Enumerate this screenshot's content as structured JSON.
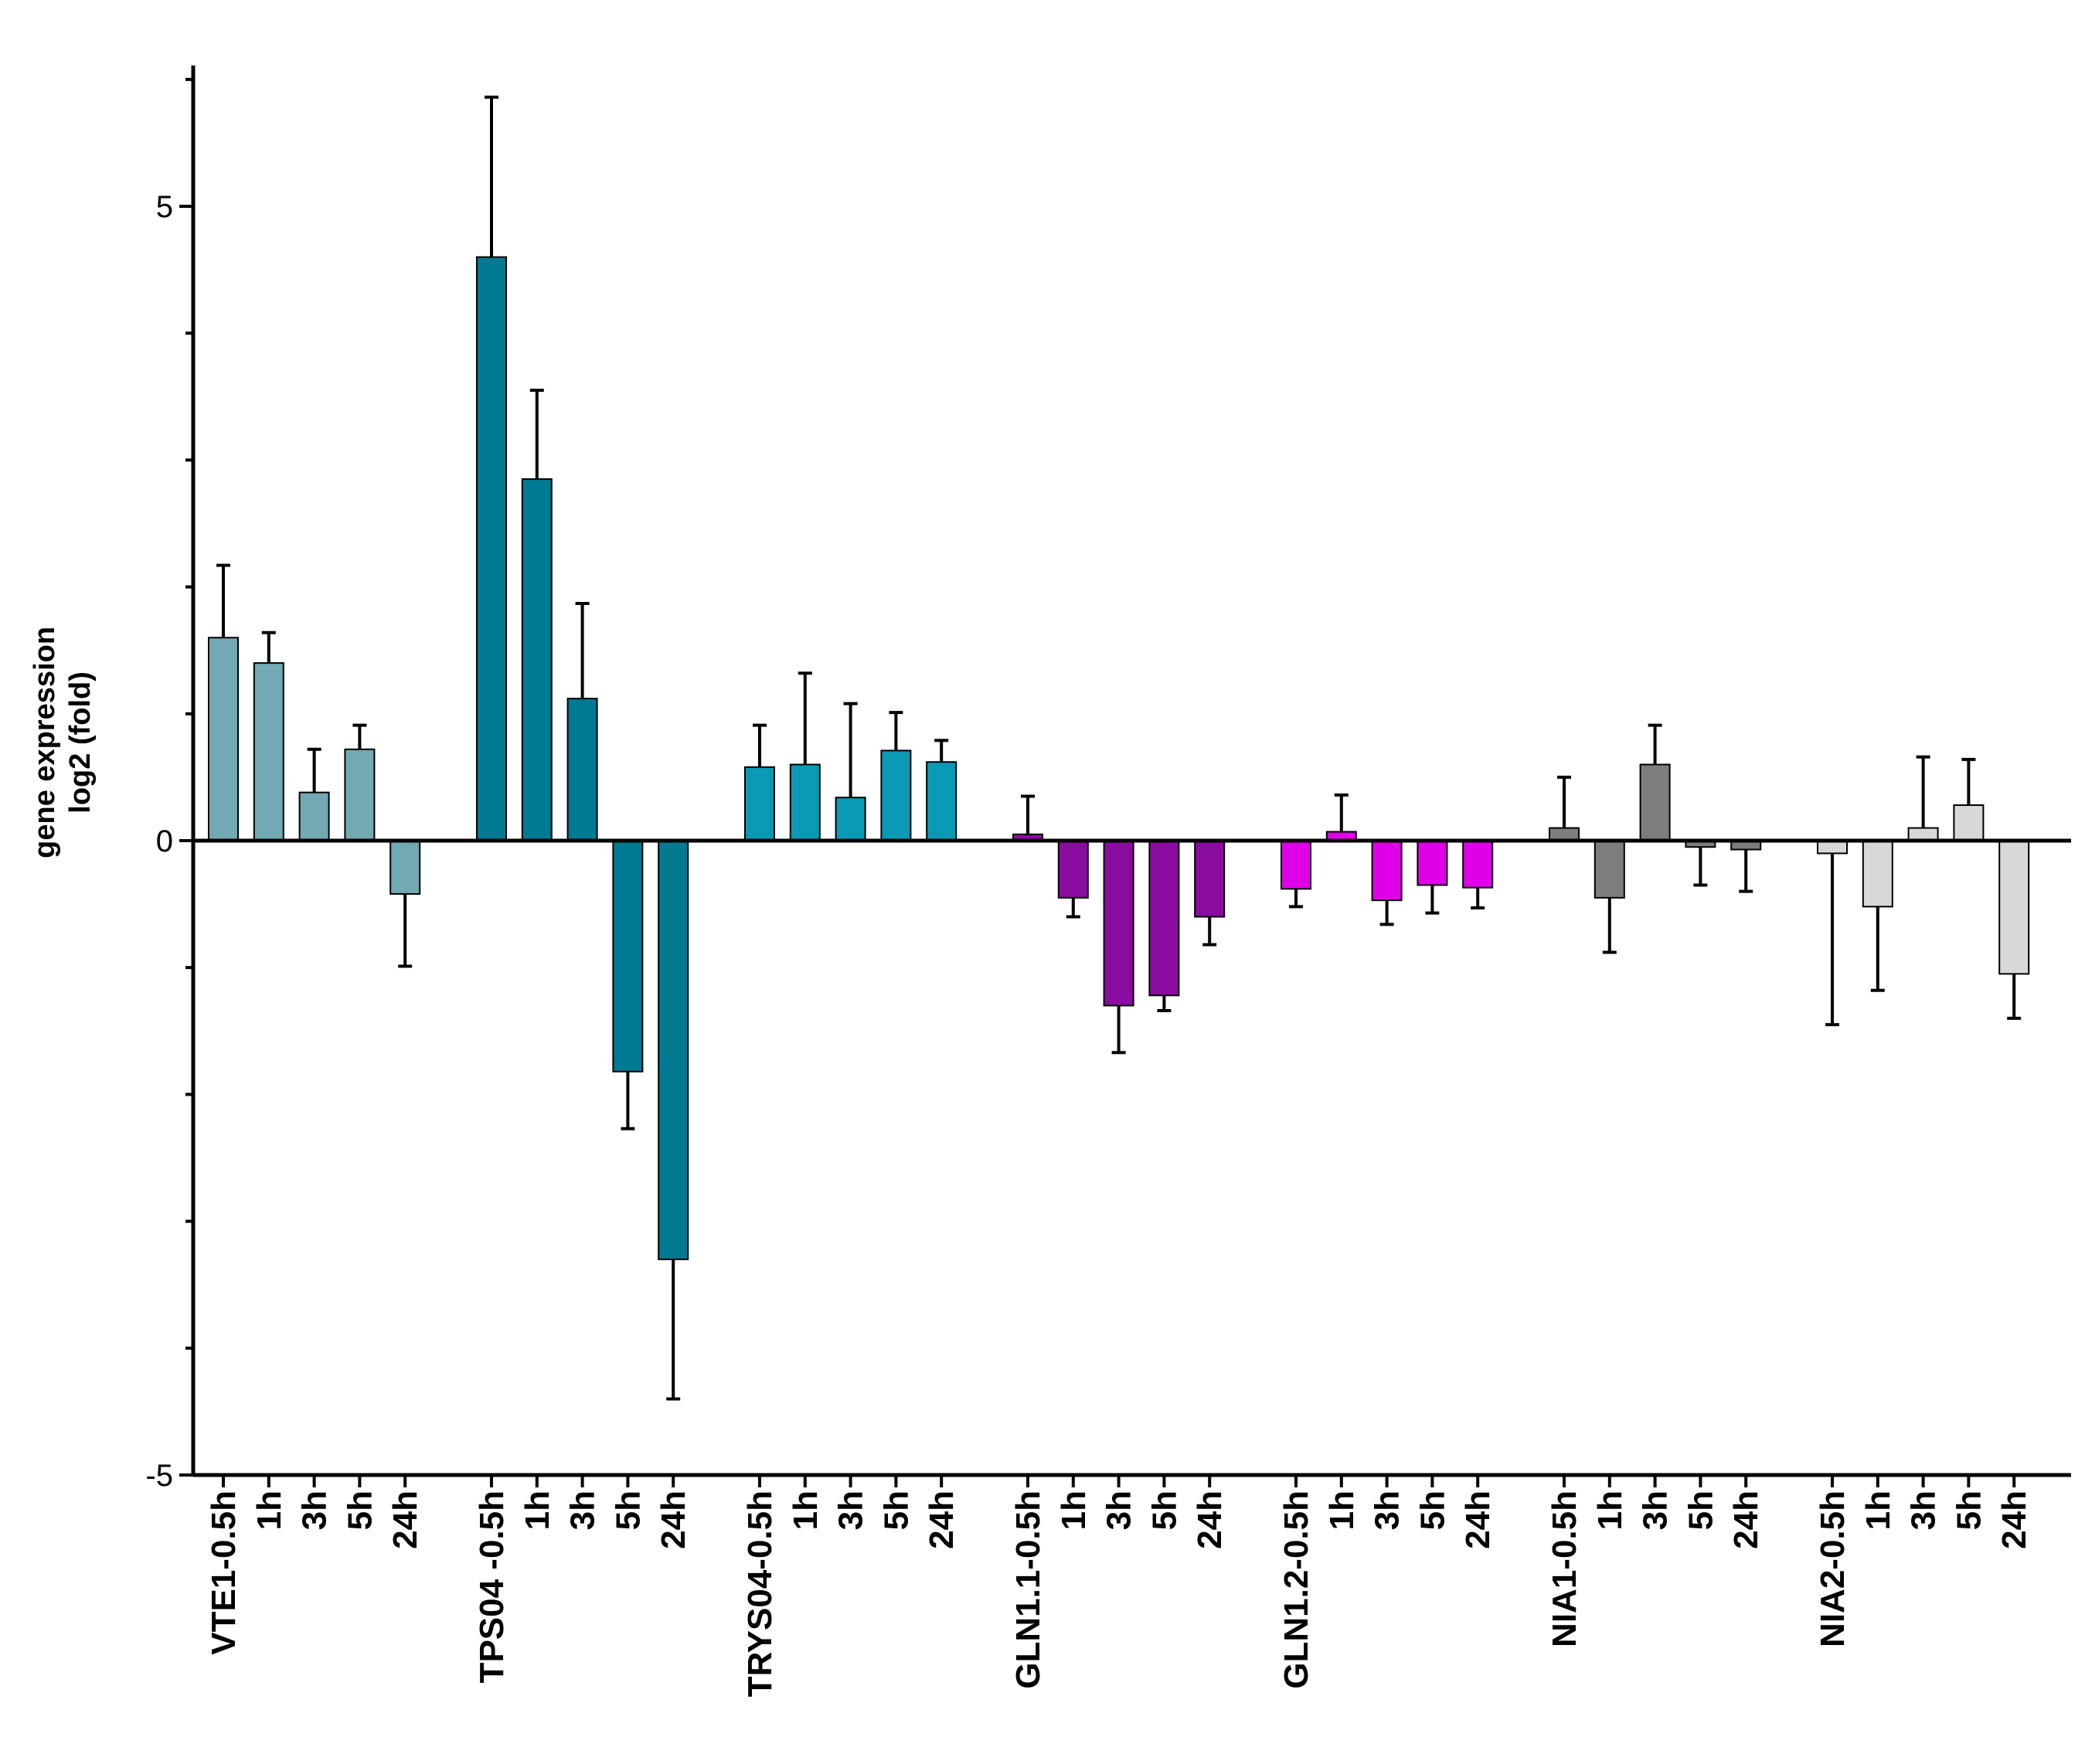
{
  "chart_data": {
    "type": "bar",
    "title": "",
    "xlabel": "",
    "ylabel": [
      "gene expression",
      "log2 (fold)"
    ],
    "ylim": [
      -5,
      6
    ],
    "yticks": [
      5,
      0,
      -5
    ],
    "yticks_minor": [
      6,
      4,
      3,
      2,
      1,
      -1,
      -2,
      -3,
      -4
    ],
    "grid": false,
    "legend": "none",
    "groups": [
      {
        "name": "VTE1",
        "labels": [
          "VTE1-0.5h",
          "1h",
          "3h",
          "5h",
          "24h"
        ],
        "color": "#72a9b2",
        "values": [
          1.6,
          1.4,
          0.38,
          0.72,
          -0.42
        ],
        "errors": [
          0.57,
          0.24,
          0.34,
          0.19,
          0.57
        ]
      },
      {
        "name": "TPS04",
        "labels": [
          "TPS04 -0.5h",
          "1h",
          "3h",
          "5h",
          "24h"
        ],
        "color": "#007a92",
        "values": [
          4.6,
          2.85,
          1.12,
          -1.82,
          -3.3
        ],
        "errors": [
          1.26,
          0.7,
          0.75,
          0.45,
          1.1
        ]
      },
      {
        "name": "TRYS04",
        "labels": [
          "TRYS04-0.5h",
          "1h",
          "3h",
          "5h",
          "24h"
        ],
        "color": "#0a9ab5",
        "values": [
          0.58,
          0.6,
          0.34,
          0.71,
          0.62
        ],
        "errors": [
          0.33,
          0.72,
          0.74,
          0.3,
          0.17
        ]
      },
      {
        "name": "GLN1.1",
        "labels": [
          "GLN1.1-0.5h",
          "1h",
          "3h",
          "5h",
          "24h"
        ],
        "color": "#8a0ca0",
        "values": [
          0.05,
          -0.45,
          -1.3,
          -1.22,
          -0.6
        ],
        "errors": [
          0.3,
          0.15,
          0.37,
          0.12,
          0.22
        ]
      },
      {
        "name": "GLN1.2",
        "labels": [
          "GLN1.2-0.5h",
          "1h",
          "3h",
          "5h",
          "24h"
        ],
        "color": "#e000e8",
        "values": [
          -0.38,
          0.07,
          -0.47,
          -0.35,
          -0.37
        ],
        "errors": [
          0.14,
          0.29,
          0.19,
          0.22,
          0.16
        ]
      },
      {
        "name": "NIA1",
        "labels": [
          "NIA1-0.5h",
          "1h",
          "3h",
          "5h",
          "24h"
        ],
        "color": "#7d7d7d",
        "values": [
          0.1,
          -0.45,
          0.6,
          -0.05,
          -0.07
        ],
        "errors": [
          0.4,
          0.43,
          0.31,
          0.3,
          0.33
        ]
      },
      {
        "name": "NIA2",
        "labels": [
          "NIA2-0.5h",
          "1h",
          "3h",
          "5h",
          "24h"
        ],
        "color": "#d8d8d8",
        "values": [
          -0.1,
          -0.52,
          0.1,
          0.28,
          -1.05
        ],
        "errors": [
          1.35,
          0.66,
          0.56,
          0.36,
          0.35
        ]
      }
    ]
  }
}
